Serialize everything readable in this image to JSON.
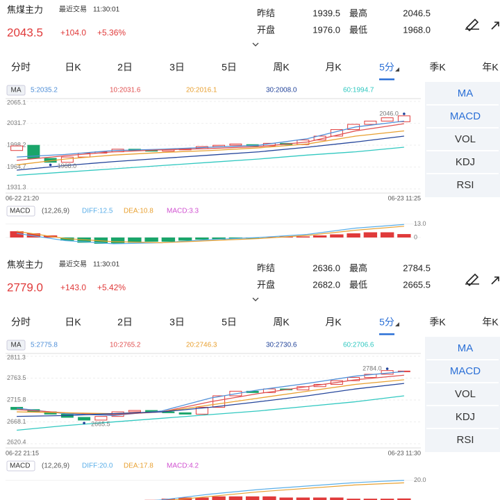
{
  "panels": [
    {
      "name": "焦煤主力",
      "last_trade_label": "最近交易",
      "last_trade_time": "11:30:01",
      "price": "2043.5",
      "change": "+104.0",
      "change_pct": "+5.36%",
      "stats": [
        {
          "label": "昨结",
          "value": "1939.5"
        },
        {
          "label": "最高",
          "value": "2046.5"
        },
        {
          "label": "开盘",
          "value": "1976.0"
        },
        {
          "label": "最低",
          "value": "1968.0"
        }
      ],
      "tabs": [
        "分时",
        "日K",
        "2日",
        "3日",
        "5日",
        "周K",
        "月K",
        "5分",
        "季K",
        "年K"
      ],
      "active_tab": 7,
      "indicators": [
        "MA",
        "MACD",
        "VOL",
        "KDJ",
        "RSI"
      ],
      "chart": {
        "type": "candlestick",
        "ma_label": "MA",
        "ylim": [
          1931.3,
          2065.1
        ],
        "yticks": [
          2065.1,
          2031.7,
          1998.2,
          1964.7,
          1931.3
        ],
        "x_start": "06-22 21:20",
        "x_end": "06-23 11:25",
        "high": {
          "value": 2046.0,
          "label": "2046.0"
        },
        "low": {
          "value": 1968.0,
          "label": "1968.0"
        },
        "up_color": "#e03a3a",
        "down_color": "#1aa56a",
        "candles": [
          [
            1990,
            1997
          ],
          [
            1998,
            1978
          ],
          [
            1978,
            1972
          ],
          [
            1972,
            1980
          ],
          [
            1980,
            1986
          ],
          [
            1986,
            1988
          ],
          [
            1988,
            1992
          ],
          [
            1992,
            1990
          ],
          [
            1990,
            1989
          ],
          [
            1989,
            1991
          ],
          [
            1991,
            1993
          ],
          [
            1993,
            1996
          ],
          [
            1996,
            1998
          ],
          [
            1998,
            2000
          ],
          [
            1999,
            1997
          ],
          [
            1997,
            2001
          ],
          [
            2001,
            1999
          ],
          [
            1999,
            2006
          ],
          [
            2006,
            2012
          ],
          [
            2012,
            2022
          ],
          [
            2022,
            2030
          ],
          [
            2030,
            2035
          ],
          [
            2035,
            2040
          ],
          [
            2034,
            2043
          ]
        ],
        "ma": [
          {
            "label": "5:2035.2",
            "color": "#4f8fd8",
            "values": [
              1980,
              1984,
              1990,
              1992,
              1995,
              1998,
              2008,
              2026,
              2035
            ]
          },
          {
            "label": "10:2031.6",
            "color": "#e05050",
            "values": [
              1975,
              1982,
              1988,
              1991,
              1993,
              1996,
              2003,
              2020,
              2031
            ]
          },
          {
            "label": "20:2016.1",
            "color": "#e8a030",
            "values": [
              1968,
              1977,
              1983,
              1987,
              1990,
              1994,
              2000,
              2012,
              2020
            ]
          },
          {
            "label": "30:2008.0",
            "color": "#23449a",
            "values": [
              1960,
              1967,
              1973,
              1978,
              1983,
              1988,
              1995,
              2003,
              2012
            ]
          },
          {
            "label": "60:1994.7",
            "color": "#30c8c0",
            "values": [
              1952,
              1957,
              1962,
              1967,
              1972,
              1977,
              1983,
              1988,
              1995
            ]
          }
        ]
      },
      "macd": {
        "label": "MACD",
        "params": "(12,26,9)",
        "ylim": [
          -16,
          16
        ],
        "yticks": [
          {
            "value": 13,
            "label": "13.0"
          },
          0
        ],
        "legend": [
          {
            "label": "DIFF:12.5",
            "color": "#5aaee8"
          },
          {
            "label": "DEA:10.8",
            "color": "#e8a030"
          },
          {
            "label": "MACD:3.3",
            "color": "#d050d0"
          }
        ],
        "bars": [
          6,
          4,
          2,
          -3,
          -5,
          -6,
          -6,
          -5,
          -4,
          -4,
          -3,
          -2,
          -2,
          -1,
          -1,
          0.5,
          1,
          1,
          2,
          3,
          4,
          5,
          5,
          3.3
        ],
        "diff": [
          4,
          -3,
          -6,
          -5,
          -2,
          0,
          3,
          9,
          12.5
        ],
        "dea": [
          6,
          -1,
          -4,
          -5,
          -3,
          -1,
          2,
          7,
          10.8
        ]
      }
    },
    {
      "name": "焦炭主力",
      "last_trade_label": "最近交易",
      "last_trade_time": "11:30:01",
      "price": "2779.0",
      "change": "+143.0",
      "change_pct": "+5.42%",
      "stats": [
        {
          "label": "昨结",
          "value": "2636.0"
        },
        {
          "label": "最高",
          "value": "2784.5"
        },
        {
          "label": "开盘",
          "value": "2682.0"
        },
        {
          "label": "最低",
          "value": "2665.5"
        }
      ],
      "tabs": [
        "分时",
        "日K",
        "2日",
        "3日",
        "5日",
        "周K",
        "月K",
        "5分",
        "季K",
        "年K"
      ],
      "active_tab": 7,
      "indicators": [
        "MA",
        "MACD",
        "VOL",
        "KDJ",
        "RSI"
      ],
      "chart": {
        "type": "candlestick",
        "ma_label": "MA",
        "ylim": [
          2620.4,
          2811.3
        ],
        "yticks": [
          2811.3,
          2763.5,
          2715.8,
          2668.1,
          2620.4
        ],
        "x_start": "06-22 21:15",
        "x_end": "06-23 11:30",
        "high": {
          "value": 2784.0,
          "label": "2784.0"
        },
        "low": {
          "value": 2665.5,
          "label": "2665.5"
        },
        "up_color": "#e03a3a",
        "down_color": "#1aa56a",
        "candles": [
          [
            2700,
            2695
          ],
          [
            2695,
            2690
          ],
          [
            2690,
            2685
          ],
          [
            2685,
            2678
          ],
          [
            2678,
            2672
          ],
          [
            2672,
            2680
          ],
          [
            2680,
            2690
          ],
          [
            2690,
            2693
          ],
          [
            2693,
            2690
          ],
          [
            2690,
            2688
          ],
          [
            2688,
            2685
          ],
          [
            2685,
            2700
          ],
          [
            2700,
            2725
          ],
          [
            2725,
            2735
          ],
          [
            2735,
            2732
          ],
          [
            2732,
            2740
          ],
          [
            2740,
            2738
          ],
          [
            2738,
            2745
          ],
          [
            2745,
            2750
          ],
          [
            2750,
            2758
          ],
          [
            2758,
            2765
          ],
          [
            2765,
            2772
          ],
          [
            2772,
            2780
          ],
          [
            2778,
            2779
          ]
        ],
        "ma": [
          {
            "label": "5:2775.8",
            "color": "#4f8fd8",
            "values": [
              2698,
              2686,
              2682,
              2692,
              2720,
              2738,
              2752,
              2768,
              2778
            ]
          },
          {
            "label": "10:2765.2",
            "color": "#e05050",
            "values": [
              2695,
              2688,
              2684,
              2690,
              2712,
              2730,
              2745,
              2760,
              2770
            ]
          },
          {
            "label": "20:2746.3",
            "color": "#e8a030",
            "values": [
              2690,
              2688,
              2686,
              2690,
              2705,
              2720,
              2735,
              2750,
              2760
            ]
          },
          {
            "label": "30:2730.6",
            "color": "#23449a",
            "values": [
              2680,
              2682,
              2686,
              2690,
              2700,
              2712,
              2725,
              2740,
              2752
            ]
          },
          {
            "label": "60:2706.6",
            "color": "#30c8c0",
            "values": [
              2650,
              2660,
              2668,
              2676,
              2684,
              2692,
              2702,
              2712,
              2725
            ]
          }
        ]
      },
      "macd": {
        "label": "MACD",
        "params": "(12,26,9)",
        "ylim": [
          -5,
          24
        ],
        "yticks": [
          {
            "value": 20,
            "label": "20.0"
          }
        ],
        "legend": [
          {
            "label": "DIFF:20.0",
            "color": "#5aaee8"
          },
          {
            "label": "DEA:17.8",
            "color": "#e8a030"
          },
          {
            "label": "MACD:4.2",
            "color": "#d050d0"
          }
        ],
        "bars": [
          -1,
          -2,
          -2,
          -2,
          -1,
          0.5,
          1,
          2,
          3,
          4,
          5,
          5,
          6,
          6,
          6,
          6,
          5,
          5,
          5,
          5,
          4,
          4,
          4,
          4.2
        ],
        "diff": [
          2,
          1,
          0,
          3,
          8,
          12,
          15,
          18,
          20
        ],
        "dea": [
          1,
          1,
          0,
          2,
          6,
          10,
          13,
          16,
          17.8
        ]
      }
    }
  ]
}
